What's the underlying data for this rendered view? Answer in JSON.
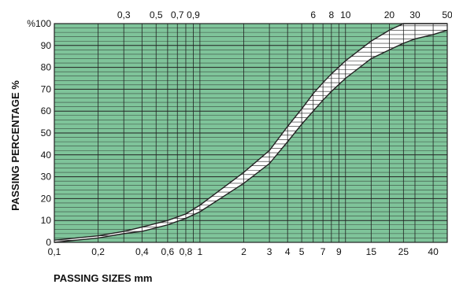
{
  "chart_data": {
    "type": "area",
    "title": "",
    "xlabel": "PASSING SIZES mm",
    "ylabel": "PASSING PERCENTAGE %",
    "x_scale": "log",
    "xlim": [
      0.1,
      50
    ],
    "ylim": [
      0,
      100
    ],
    "grid": true,
    "colors": {
      "background": "#7fc49a",
      "band": "#ffffff",
      "lines": "#222222"
    },
    "bottom_ticks": [
      {
        "value": 0.1,
        "label": "0,1"
      },
      {
        "value": 0.2,
        "label": "0,2"
      },
      {
        "value": 0.4,
        "label": "0,4"
      },
      {
        "value": 0.6,
        "label": "0,6"
      },
      {
        "value": 0.8,
        "label": "0,8"
      },
      {
        "value": 1,
        "label": "1"
      },
      {
        "value": 2,
        "label": "2"
      },
      {
        "value": 3,
        "label": "3"
      },
      {
        "value": 4,
        "label": "4"
      },
      {
        "value": 5,
        "label": "5"
      },
      {
        "value": 7,
        "label": "7"
      },
      {
        "value": 9,
        "label": "9"
      },
      {
        "value": 15,
        "label": "15"
      },
      {
        "value": 25,
        "label": "25"
      },
      {
        "value": 40,
        "label": "40"
      }
    ],
    "top_ticks": [
      {
        "value": 0.3,
        "label": "0,3"
      },
      {
        "value": 0.5,
        "label": "0,5"
      },
      {
        "value": 0.7,
        "label": "0,7"
      },
      {
        "value": 0.9,
        "label": "0,9"
      },
      {
        "value": 6,
        "label": "6"
      },
      {
        "value": 8,
        "label": "8"
      },
      {
        "value": 10,
        "label": "10"
      },
      {
        "value": 20,
        "label": "20"
      },
      {
        "value": 30,
        "label": "30"
      },
      {
        "value": 50,
        "label": "50"
      }
    ],
    "y_ticks": [
      {
        "value": 0,
        "label": "0"
      },
      {
        "value": 10,
        "label": "10"
      },
      {
        "value": 20,
        "label": "20"
      },
      {
        "value": 30,
        "label": "30"
      },
      {
        "value": 40,
        "label": "40"
      },
      {
        "value": 50,
        "label": "50"
      },
      {
        "value": 60,
        "label": "60"
      },
      {
        "value": 70,
        "label": "70"
      },
      {
        "value": 80,
        "label": "80"
      },
      {
        "value": 90,
        "label": "90"
      },
      {
        "value": 100,
        "label": "%100"
      }
    ],
    "series": [
      {
        "x": [
          0.1,
          0.2,
          0.3,
          0.4,
          0.6,
          0.8,
          1,
          2,
          3,
          4,
          5,
          6,
          7,
          8,
          10,
          15,
          20,
          25,
          30,
          40,
          50
        ],
        "values": [
          1,
          3,
          5,
          7,
          10,
          13,
          17,
          32,
          42,
          53,
          61,
          68,
          73,
          77,
          83,
          92,
          97,
          100,
          100,
          100,
          100
        ]
      },
      {
        "x": [
          0.1,
          0.2,
          0.3,
          0.4,
          0.6,
          0.8,
          1,
          2,
          3,
          4,
          5,
          6,
          7,
          8,
          10,
          15,
          20,
          25,
          30,
          40,
          50
        ],
        "values": [
          0,
          2,
          4,
          5,
          8,
          11,
          14,
          27,
          36,
          46,
          54,
          60,
          65,
          69,
          75,
          84,
          88,
          91,
          93,
          95,
          97
        ]
      }
    ]
  }
}
